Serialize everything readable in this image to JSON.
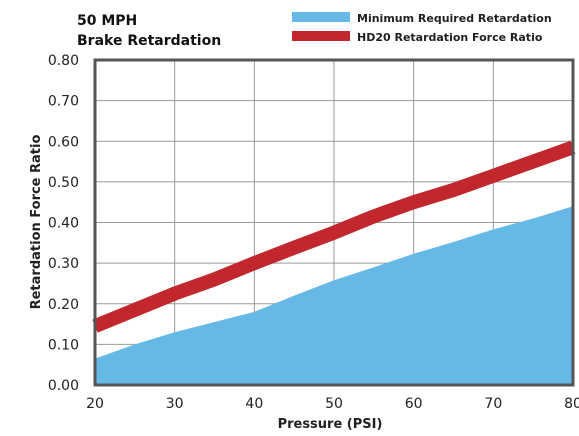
{
  "chart_data": {
    "type": "area",
    "title_lines": [
      "50 MPH",
      "Brake Retardation"
    ],
    "xlabel": "Pressure (PSI)",
    "ylabel": "Retardation Force Ratio",
    "xlim": [
      20,
      80
    ],
    "ylim": [
      0,
      0.8
    ],
    "x_ticks": [
      "20",
      "30",
      "40",
      "50",
      "60",
      "70",
      "80"
    ],
    "y_ticks": [
      "0.00",
      "0.10",
      "0.20",
      "0.30",
      "0.40",
      "0.50",
      "0.60",
      "0.70",
      "0.80"
    ],
    "grid": true,
    "legend_position": "top-right",
    "series": [
      {
        "name": "Minimum Required Retardation",
        "type": "area",
        "color": "#66b8e6",
        "points": [
          [
            20,
            0.065
          ],
          [
            25,
            0.1
          ],
          [
            30,
            0.13
          ],
          [
            35,
            0.155
          ],
          [
            40,
            0.18
          ],
          [
            45,
            0.22
          ],
          [
            50,
            0.258
          ],
          [
            55,
            0.29
          ],
          [
            60,
            0.323
          ],
          [
            65,
            0.352
          ],
          [
            70,
            0.383
          ],
          [
            75,
            0.41
          ],
          [
            80,
            0.44
          ]
        ]
      },
      {
        "name": "HD20 Retardation Force Ratio",
        "type": "line",
        "color": "#c1272d",
        "points": [
          [
            20,
            0.145
          ],
          [
            25,
            0.185
          ],
          [
            30,
            0.225
          ],
          [
            35,
            0.26
          ],
          [
            40,
            0.3
          ],
          [
            45,
            0.338
          ],
          [
            50,
            0.375
          ],
          [
            55,
            0.415
          ],
          [
            60,
            0.45
          ],
          [
            65,
            0.48
          ],
          [
            70,
            0.515
          ],
          [
            75,
            0.55
          ],
          [
            80,
            0.585
          ]
        ]
      }
    ]
  }
}
